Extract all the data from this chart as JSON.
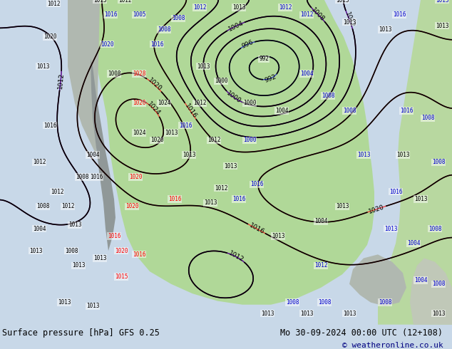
{
  "title_left": "Surface pressure [hPa] GFS 0.25",
  "title_right": "Mo 30-09-2024 00:00 UTC (12+108)",
  "copyright": "© weatheronline.co.uk",
  "bg_color": "#d0d8e8",
  "land_color": "#c8e6c0",
  "figsize": [
    6.34,
    4.9
  ],
  "dpi": 100
}
